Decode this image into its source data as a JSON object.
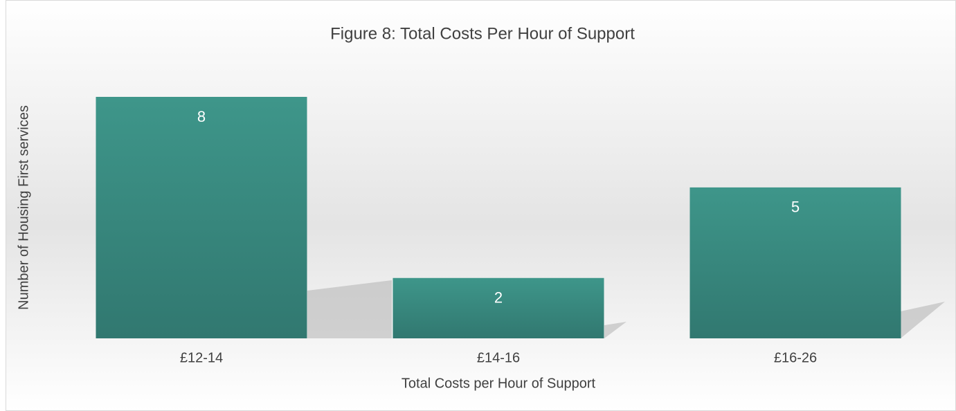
{
  "chart_data": {
    "type": "bar",
    "title": "Figure 8: Total Costs Per Hour of Support",
    "x_label": "Total Costs per Hour of Support",
    "y_label": "Number of Housing First services",
    "categories": [
      "£12-14",
      "£14-16",
      "£16-26"
    ],
    "values": [
      8,
      2,
      5
    ],
    "color": "#3a8c81",
    "ylim": [
      0,
      8
    ]
  }
}
